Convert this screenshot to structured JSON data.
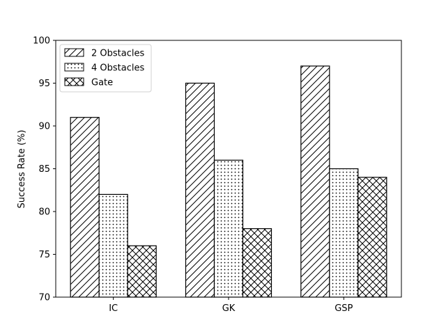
{
  "chart_data": {
    "type": "bar",
    "title": "",
    "xlabel": "",
    "ylabel": "Success Rate (%)",
    "ylim": [
      70,
      100
    ],
    "yticks": [
      70,
      75,
      80,
      85,
      90,
      95,
      100
    ],
    "categories": [
      "IC",
      "GK",
      "GSP"
    ],
    "series": [
      {
        "name": "2 Obstacles",
        "values": [
          91,
          95,
          97
        ],
        "hatch": "diagonal"
      },
      {
        "name": "4 Obstacles",
        "values": [
          82,
          86,
          85
        ],
        "hatch": "dots"
      },
      {
        "name": "Gate",
        "values": [
          76,
          78,
          84
        ],
        "hatch": "crosshatch"
      }
    ],
    "legend": {
      "placement": "top-left"
    },
    "grid": false,
    "colors": {
      "bar_fill": "#ffffff",
      "edge": "#000000"
    }
  }
}
